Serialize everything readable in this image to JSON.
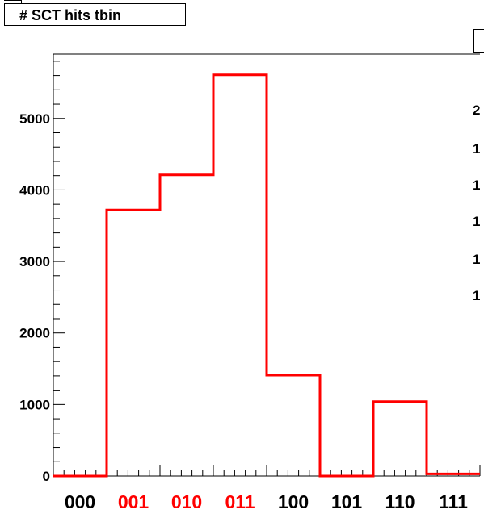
{
  "title": "# SCT hits tbin",
  "stats_partial_labels": [
    "2",
    "1",
    "1",
    "1",
    "1",
    "1"
  ],
  "chart_data": {
    "type": "bar",
    "style": "step-histogram",
    "title": "# SCT hits tbin",
    "categories": [
      "000",
      "001",
      "010",
      "011",
      "100",
      "101",
      "110",
      "111"
    ],
    "category_colors": [
      "#000000",
      "#ff0000",
      "#ff0000",
      "#ff0000",
      "#000000",
      "#000000",
      "#000000",
      "#000000"
    ],
    "bins": [
      {
        "low": -0.5,
        "high": 0.5,
        "value": 0
      },
      {
        "low": 0.5,
        "high": 1.5,
        "value": 3720
      },
      {
        "low": 1.5,
        "high": 2.5,
        "value": 4210
      },
      {
        "low": 2.5,
        "high": 3.5,
        "value": 5610
      },
      {
        "low": 3.5,
        "high": 4.5,
        "value": 1410
      },
      {
        "low": 4.5,
        "high": 5.5,
        "value": 0
      },
      {
        "low": 5.5,
        "high": 6.5,
        "value": 1040
      },
      {
        "low": 6.5,
        "high": 7.5,
        "value": 30
      }
    ],
    "xlim": [
      -0.5,
      7.5
    ],
    "ylim": [
      0,
      5900
    ],
    "y_ticks": [
      0,
      1000,
      2000,
      3000,
      4000,
      5000
    ],
    "y_tick_labels": [
      "0",
      "1000",
      "2000",
      "3000",
      "4000",
      "5000"
    ],
    "line_color": "#ff0000",
    "grid": false,
    "xlabel": "",
    "ylabel": ""
  }
}
